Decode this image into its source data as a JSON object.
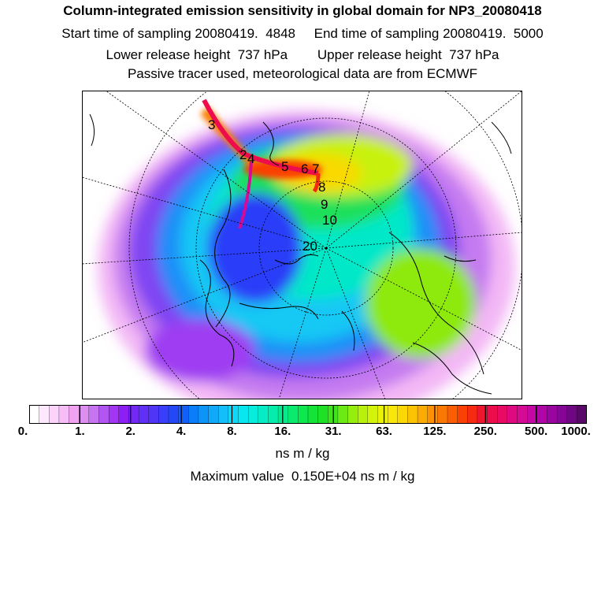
{
  "header": {
    "title": "Column-integrated emission sensitivity in global domain for NP3_20080418",
    "sampling": "Start time of sampling 20080419.  4848     End time of sampling 20080419.  5000",
    "release": "Lower release height  737 hPa        Upper release height  737 hPa",
    "tracer": "Passive tracer used, meteorological data are from ECMWF"
  },
  "map": {
    "projection": "north polar stereographic",
    "trajectory_labels": [
      "3",
      "2",
      "4",
      "5",
      "6",
      "7",
      "8",
      "9",
      "10",
      "20"
    ]
  },
  "colorbar": {
    "colors": [
      "#ffffff",
      "#fde8fd",
      "#fbd3fb",
      "#f7bdf7",
      "#f1a3f1",
      "#dc8ff0",
      "#c674f0",
      "#b256f1",
      "#a236f3",
      "#8c1ff4",
      "#7428f6",
      "#6130f6",
      "#4f36f7",
      "#3a3ef8",
      "#2448f8",
      "#1260f8",
      "#0a7df9",
      "#0c95f9",
      "#10a9f9",
      "#14bff9",
      "#10d6f7",
      "#08e6f0",
      "#06edde",
      "#06edc5",
      "#06ecaa",
      "#06eb8e",
      "#09ea6e",
      "#0de84f",
      "#14e437",
      "#1ee026",
      "#3fe51c",
      "#6cea13",
      "#95ef0e",
      "#b8f20c",
      "#d4f30b",
      "#ebf20a",
      "#f8e708",
      "#fbd706",
      "#fcc305",
      "#fcab04",
      "#fc9203",
      "#fb7803",
      "#fb5d03",
      "#fa4003",
      "#f62a10",
      "#f1162f",
      "#ee0d4c",
      "#e90a66",
      "#e00a80",
      "#d50a95",
      "#c508a3",
      "#b006a8",
      "#9a05a2",
      "#850596",
      "#6f0682",
      "#5a066a"
    ],
    "ticks": [
      "0.",
      "1.",
      "2.",
      "4.",
      "8.",
      "16.",
      "31.",
      "63.",
      "125.",
      "250.",
      "500.",
      "1000."
    ],
    "unit": "ns m / kg",
    "max_label": "Maximum value  0.150E+04 ns m / kg"
  }
}
